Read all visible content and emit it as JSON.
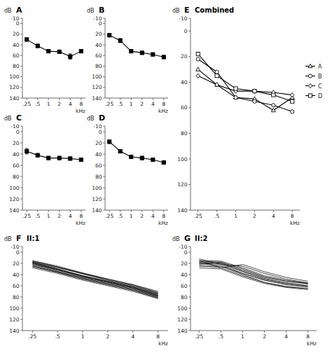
{
  "chart_data": [
    {
      "type": "line",
      "title": "A",
      "x_label": "kHz",
      "y_label": "dB",
      "color": "#000000",
      "grid": false,
      "categories": [
        ".25",
        ".5",
        "1",
        "2",
        "4",
        "8"
      ],
      "ylim": [
        140,
        -10
      ],
      "yticks": [
        -10,
        0,
        20,
        40,
        60,
        80,
        100,
        120,
        140
      ],
      "series": [
        {
          "marker": "square",
          "values": [
            30,
            42,
            52,
            53,
            62,
            52
          ],
          "errors": [
            3,
            3,
            3,
            3,
            5,
            3
          ]
        }
      ]
    },
    {
      "type": "line",
      "title": "B",
      "x_label": "kHz",
      "y_label": "dB",
      "color": "#000000",
      "grid": false,
      "categories": [
        ".25",
        ".5",
        "1",
        "2",
        "4",
        "8"
      ],
      "ylim": [
        140,
        -10
      ],
      "yticks": [
        -10,
        0,
        20,
        40,
        60,
        80,
        100,
        120,
        140
      ],
      "series": [
        {
          "marker": "square",
          "values": [
            22,
            32,
            52,
            55,
            58,
            63
          ],
          "errors": [
            3,
            4,
            3,
            3,
            3,
            3
          ]
        }
      ]
    },
    {
      "type": "line",
      "title": "C",
      "x_label": "kHz",
      "y_label": "dB",
      "color": "#000000",
      "grid": false,
      "categories": [
        ".25",
        ".5",
        "1",
        "2",
        "4",
        "8"
      ],
      "ylim": [
        140,
        -10
      ],
      "yticks": [
        -10,
        0,
        20,
        40,
        60,
        80,
        100,
        120,
        140
      ],
      "series": [
        {
          "marker": "square",
          "values": [
            35,
            42,
            47,
            47,
            48,
            50
          ],
          "errors": [
            5,
            3,
            3,
            3,
            3,
            3
          ]
        }
      ]
    },
    {
      "type": "line",
      "title": "D",
      "x_label": "kHz",
      "y_label": "dB",
      "color": "#000000",
      "grid": false,
      "categories": [
        ".25",
        ".5",
        "1",
        "2",
        "4",
        "8"
      ],
      "ylim": [
        140,
        -10
      ],
      "yticks": [
        -10,
        0,
        20,
        40,
        60,
        80,
        100,
        120,
        140
      ],
      "series": [
        {
          "marker": "square",
          "values": [
            18,
            35,
            45,
            47,
            50,
            55
          ],
          "errors": [
            3,
            3,
            3,
            3,
            3,
            3
          ]
        }
      ]
    },
    {
      "type": "line",
      "title": "E",
      "subtitle": "Combined",
      "x_label": "kHz",
      "y_label": "dB",
      "color": "#000000",
      "grid": false,
      "legend": "right",
      "categories": [
        ".25",
        ".5",
        "1",
        "2",
        "4",
        "8"
      ],
      "ylim": [
        140,
        -10
      ],
      "yticks": [
        -10,
        0,
        20,
        40,
        60,
        80,
        100,
        120,
        140
      ],
      "series": [
        {
          "name": "A",
          "marker": "triangle",
          "values": [
            30,
            42,
            52,
            53,
            62,
            52
          ]
        },
        {
          "name": "B",
          "marker": "circle",
          "values": [
            22,
            32,
            52,
            55,
            58,
            63
          ]
        },
        {
          "name": "C",
          "marker": "diamond",
          "values": [
            35,
            42,
            47,
            47,
            48,
            50
          ]
        },
        {
          "name": "D",
          "marker": "square",
          "values": [
            18,
            35,
            45,
            47,
            50,
            55
          ]
        }
      ]
    },
    {
      "type": "line",
      "title": "F",
      "subtitle": "II:1",
      "x_label": "kHz",
      "y_label": "dB",
      "color": "#000000",
      "grid": false,
      "categories": [
        ".25",
        ".5",
        "1",
        "2",
        "4",
        "8"
      ],
      "ylim": [
        140,
        -10
      ],
      "yticks": [
        -10,
        0,
        20,
        40,
        60,
        80,
        100,
        120,
        140
      ],
      "series": [
        {
          "values": [
            18,
            28,
            38,
            48,
            58,
            72
          ]
        },
        {
          "values": [
            20,
            30,
            42,
            52,
            62,
            75
          ]
        },
        {
          "values": [
            22,
            32,
            44,
            54,
            64,
            78
          ]
        },
        {
          "values": [
            16,
            26,
            38,
            50,
            60,
            73
          ]
        },
        {
          "values": [
            25,
            35,
            46,
            56,
            66,
            80
          ]
        },
        {
          "values": [
            28,
            38,
            50,
            60,
            70,
            83
          ]
        },
        {
          "values": [
            18,
            30,
            42,
            52,
            62,
            76
          ]
        },
        {
          "values": [
            20,
            32,
            44,
            54,
            64,
            78
          ]
        },
        {
          "values": [
            15,
            25,
            37,
            48,
            58,
            70
          ]
        },
        {
          "values": [
            22,
            34,
            46,
            56,
            66,
            79
          ]
        },
        {
          "values": [
            26,
            36,
            48,
            58,
            68,
            81
          ]
        },
        {
          "values": [
            19,
            31,
            43,
            53,
            63,
            77
          ]
        },
        {
          "values": [
            17,
            27,
            39,
            50,
            60,
            74
          ]
        },
        {
          "values": [
            24,
            36,
            48,
            58,
            68,
            82
          ]
        }
      ]
    },
    {
      "type": "line",
      "title": "G",
      "subtitle": "II:2",
      "x_label": "kHz",
      "y_label": "dB",
      "color": "#000000",
      "grid": false,
      "categories": [
        ".25",
        ".5",
        "1",
        "2",
        "4",
        "8"
      ],
      "ylim": [
        140,
        -10
      ],
      "yticks": [
        -10,
        0,
        20,
        40,
        60,
        80,
        100,
        120,
        140
      ],
      "series": [
        {
          "values": [
            18,
            20,
            35,
            48,
            55,
            60
          ]
        },
        {
          "values": [
            20,
            22,
            38,
            50,
            58,
            62
          ]
        },
        {
          "values": [
            22,
            18,
            32,
            45,
            52,
            57
          ]
        },
        {
          "values": [
            15,
            16,
            28,
            42,
            50,
            55
          ]
        },
        {
          "values": [
            25,
            25,
            40,
            54,
            62,
            65
          ]
        },
        {
          "values": [
            28,
            30,
            44,
            56,
            63,
            67
          ]
        },
        {
          "values": [
            18,
            20,
            34,
            47,
            55,
            60
          ]
        },
        {
          "values": [
            20,
            25,
            38,
            50,
            57,
            62
          ]
        },
        {
          "values": [
            16,
            18,
            30,
            44,
            52,
            56
          ]
        },
        {
          "values": [
            24,
            28,
            42,
            54,
            61,
            65
          ]
        },
        {
          "values": [
            12,
            22,
            25,
            38,
            48,
            55
          ]
        },
        {
          "values": [
            15,
            28,
            22,
            35,
            45,
            52
          ]
        }
      ]
    }
  ]
}
